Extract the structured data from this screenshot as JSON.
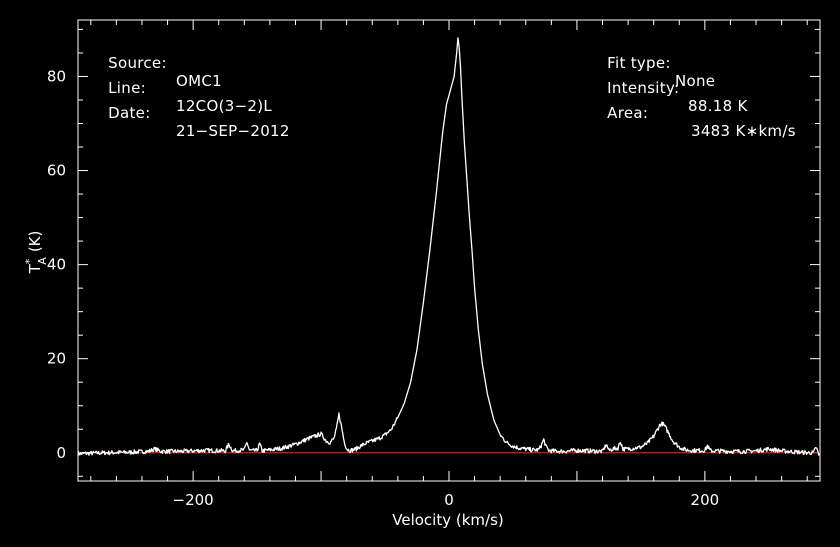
{
  "colors": {
    "background": "#000000",
    "foreground": "#ffffff",
    "baseline": "#d02020"
  },
  "header_left": [
    {
      "key": "Source:",
      "value": "OMC1"
    },
    {
      "key": "Line:",
      "value": "12CO(3−2)L"
    },
    {
      "key": "Date:",
      "value": "21−SEP−2012"
    }
  ],
  "header_right": [
    {
      "key": "Fit type:",
      "value": "None"
    },
    {
      "key": "Intensity:",
      "value": "88.18 K"
    },
    {
      "key": "Area:",
      "value": "3483 K∗km/s"
    }
  ],
  "chart_data": {
    "type": "line",
    "xlabel": "Velocity (km/s)",
    "ylabel_main": "T",
    "ylabel_sup": "*",
    "ylabel_sub": "A",
    "ylabel_unit": "(K)",
    "xlim": [
      -290,
      290
    ],
    "ylim": [
      -6,
      92
    ],
    "xticks": [
      -200,
      0,
      200
    ],
    "xtick_labels": [
      "−200",
      "0",
      "200"
    ],
    "yticks": [
      0,
      20,
      40,
      60,
      80
    ],
    "ytick_labels": [
      "0",
      "20",
      "40",
      "60",
      "80"
    ],
    "grid": false,
    "baseline_y": 0,
    "series": [
      {
        "x": [
          -290,
          -270,
          -250,
          -235,
          -230,
          -225,
          -210,
          -190,
          -175,
          -172,
          -169,
          -165,
          -160,
          -158,
          -156,
          -153,
          -150,
          -148,
          -146,
          -140,
          -130,
          -120,
          -110,
          -105,
          -100,
          -98,
          -96,
          -93,
          -90,
          -88,
          -86,
          -84,
          -82,
          -80,
          -78,
          -75,
          -72,
          -70,
          -65,
          -60,
          -55,
          -50,
          -45,
          -40,
          -35,
          -30,
          -25,
          -20,
          -15,
          -10,
          -5,
          -2,
          0,
          2,
          4,
          6,
          7,
          8,
          9,
          10,
          11,
          12,
          14,
          16,
          18,
          20,
          23,
          26,
          30,
          35,
          40,
          45,
          50,
          55,
          60,
          65,
          70,
          72,
          74,
          76,
          78,
          80,
          90,
          100,
          110,
          120,
          123,
          125,
          128,
          132,
          134,
          136,
          140,
          150,
          155,
          160,
          163,
          165,
          167,
          169,
          172,
          175,
          180,
          185,
          190,
          195,
          200,
          202,
          204,
          206,
          210,
          220,
          230,
          240,
          250,
          260,
          270,
          280,
          285,
          287,
          289,
          290
        ],
        "y": [
          -0.2,
          0.0,
          0.1,
          0.3,
          0.8,
          0.3,
          0.3,
          0.5,
          0.4,
          1.8,
          0.4,
          0.5,
          0.6,
          2.3,
          0.5,
          0.4,
          0.5,
          1.9,
          0.4,
          0.6,
          1.0,
          1.8,
          3.0,
          3.5,
          4.0,
          3.3,
          2.5,
          2.2,
          3.0,
          5.0,
          8.2,
          5.5,
          2.5,
          0.9,
          0.5,
          0.6,
          0.9,
          1.3,
          2.0,
          2.5,
          3.0,
          3.8,
          5.0,
          7.5,
          10.5,
          15.0,
          22.0,
          32.0,
          43.0,
          55.0,
          68.0,
          74.0,
          76.0,
          78.0,
          80.0,
          85.0,
          88.2,
          86.0,
          82.0,
          76.0,
          71.0,
          66.0,
          58.0,
          50.0,
          43.0,
          35.0,
          26.0,
          19.0,
          12.5,
          7.0,
          3.8,
          2.2,
          1.4,
          1.0,
          0.8,
          0.6,
          0.6,
          1.5,
          2.8,
          1.2,
          0.5,
          0.4,
          0.3,
          0.5,
          0.4,
          0.3,
          1.8,
          0.5,
          0.8,
          1.0,
          2.4,
          0.8,
          0.8,
          1.2,
          2.0,
          3.5,
          5.0,
          6.0,
          6.2,
          5.5,
          4.0,
          2.5,
          1.2,
          0.6,
          0.5,
          0.5,
          0.5,
          1.5,
          0.5,
          0.4,
          0.4,
          0.3,
          0.3,
          0.4,
          0.8,
          0.4,
          0.2,
          0.0,
          0.0,
          1.2,
          -0.5,
          -0.2
        ]
      }
    ]
  }
}
